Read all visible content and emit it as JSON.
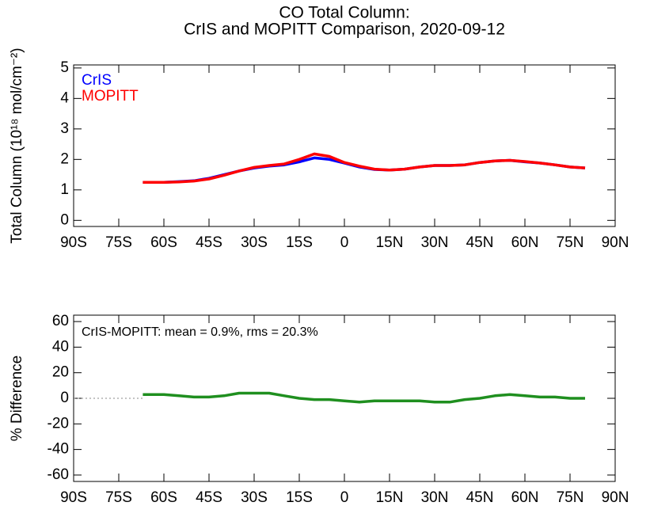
{
  "chart_data": [
    {
      "type": "line",
      "title": [
        "CO Total Column:",
        "CrIS and MOPITT Comparison, 2020-09-12"
      ],
      "ylabel": "Total Column (10¹⁸ mol/cm⁻²)",
      "xlim": [
        -90,
        90
      ],
      "xticks": [
        {
          "value": -90,
          "label": "90S"
        },
        {
          "value": -75,
          "label": "75S"
        },
        {
          "value": -60,
          "label": "60S"
        },
        {
          "value": -45,
          "label": "45S"
        },
        {
          "value": -30,
          "label": "30S"
        },
        {
          "value": -15,
          "label": "15S"
        },
        0,
        {
          "value": 15,
          "label": "15N"
        },
        {
          "value": 30,
          "label": "30N"
        },
        {
          "value": 45,
          "label": "45N"
        },
        {
          "value": 60,
          "label": "60N"
        },
        {
          "value": 75,
          "label": "75N"
        },
        {
          "value": 90,
          "label": "90N"
        }
      ],
      "ylim": [
        -0.2,
        5.1
      ],
      "yticks": [
        0,
        1,
        2,
        3,
        4,
        5
      ],
      "legend": "upper left",
      "x": [
        -67,
        -60,
        -55,
        -50,
        -45,
        -40,
        -35,
        -30,
        -25,
        -20,
        -15,
        -10,
        -5,
        0,
        5,
        10,
        15,
        20,
        25,
        30,
        35,
        40,
        45,
        50,
        55,
        60,
        65,
        70,
        75,
        80
      ],
      "series": [
        {
          "name": "CrIS",
          "color": "#0000ff",
          "values": [
            1.25,
            1.25,
            1.27,
            1.3,
            1.38,
            1.5,
            1.62,
            1.72,
            1.78,
            1.82,
            1.92,
            2.05,
            2.0,
            1.88,
            1.75,
            1.67,
            1.65,
            1.68,
            1.75,
            1.8,
            1.8,
            1.82,
            1.9,
            1.95,
            1.97,
            1.92,
            1.88,
            1.82,
            1.75,
            1.72
          ]
        },
        {
          "name": "MOPITT",
          "color": "#ff0000",
          "values": [
            1.25,
            1.25,
            1.26,
            1.29,
            1.36,
            1.48,
            1.62,
            1.74,
            1.8,
            1.85,
            2.0,
            2.18,
            2.1,
            1.9,
            1.78,
            1.68,
            1.65,
            1.68,
            1.75,
            1.8,
            1.8,
            1.82,
            1.9,
            1.95,
            1.97,
            1.93,
            1.88,
            1.82,
            1.75,
            1.72
          ]
        }
      ]
    },
    {
      "type": "line",
      "ylabel": "% Difference",
      "annotation": "CrIS-MOPITT: mean =  0.9%, rms =  20.3%",
      "xlim": [
        -90,
        90
      ],
      "xticks": [
        {
          "value": -90,
          "label": "90S"
        },
        {
          "value": -75,
          "label": "75S"
        },
        {
          "value": -60,
          "label": "60S"
        },
        {
          "value": -45,
          "label": "45S"
        },
        {
          "value": -30,
          "label": "30S"
        },
        {
          "value": -15,
          "label": "15S"
        },
        0,
        {
          "value": 15,
          "label": "15N"
        },
        {
          "value": 30,
          "label": "30N"
        },
        {
          "value": 45,
          "label": "45N"
        },
        {
          "value": 60,
          "label": "60N"
        },
        {
          "value": 75,
          "label": "75N"
        },
        {
          "value": 90,
          "label": "90N"
        }
      ],
      "ylim": [
        -65,
        65
      ],
      "yticks": [
        -60,
        -40,
        -20,
        0,
        20,
        40,
        60
      ],
      "x": [
        -67,
        -60,
        -55,
        -50,
        -45,
        -40,
        -35,
        -30,
        -25,
        -20,
        -15,
        -10,
        -5,
        0,
        5,
        10,
        15,
        20,
        25,
        30,
        35,
        40,
        45,
        50,
        55,
        60,
        65,
        70,
        75,
        80
      ],
      "series": [
        {
          "color": "#1f8f1f",
          "values": [
            3,
            3,
            2,
            1,
            1,
            2,
            4,
            4,
            4,
            2,
            0,
            -1,
            -1,
            -2,
            -3,
            -2,
            -2,
            -2,
            -2,
            -3,
            -3,
            -1,
            0,
            2,
            3,
            2,
            1,
            1,
            0,
            0
          ]
        }
      ]
    }
  ]
}
